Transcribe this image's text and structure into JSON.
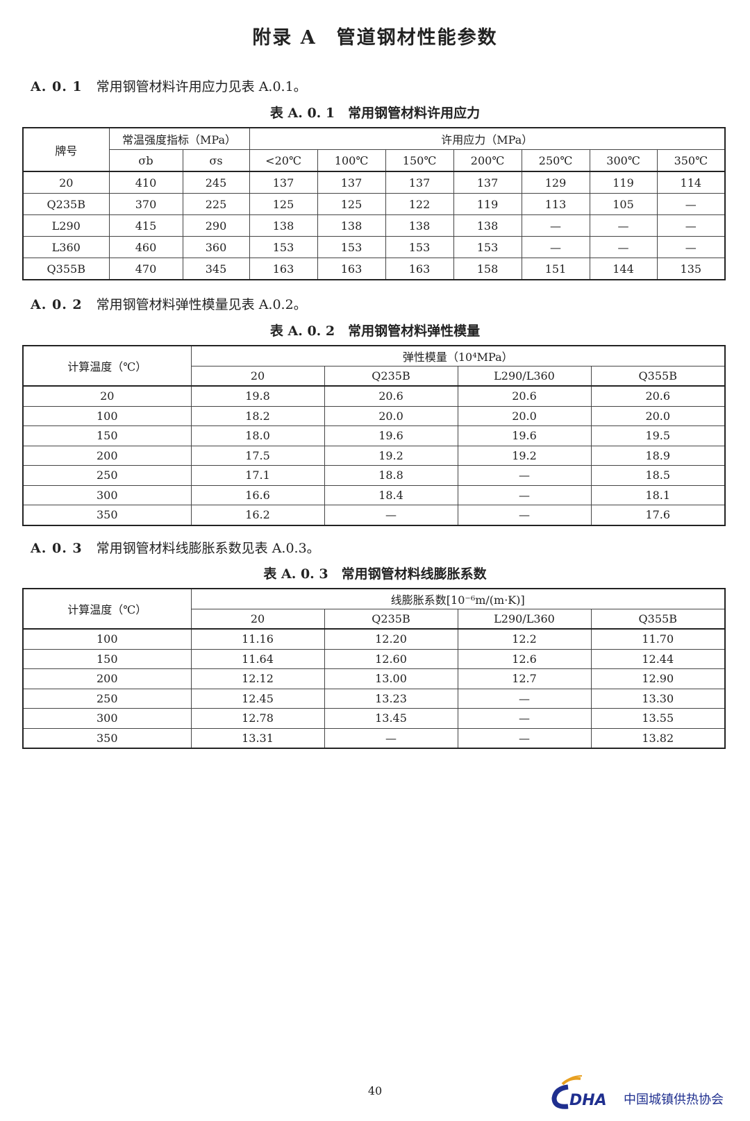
{
  "title": "附录 A　管道钢材性能参数",
  "sections": [
    {
      "num": "A. 0. 1",
      "text": "常用钢管材料许用应力见表 A.0.1。",
      "table_title": "表 A. 0. 1　常用钢管材料许用应力"
    },
    {
      "num": "A. 0. 2",
      "text": "常用钢管材料弹性模量见表 A.0.2。",
      "table_title": "表 A. 0. 2　常用钢管材料弹性模量"
    },
    {
      "num": "A. 0. 3",
      "text": "常用钢管材料线膨胀系数见表 A.0.3。",
      "table_title": "表 A. 0. 3　常用钢管材料线膨胀系数"
    }
  ],
  "t1": {
    "h_grade": "牌号",
    "h_strength": "常温强度指标（MPa）",
    "h_allow": "许用应力（MPa）",
    "sub": [
      "σb",
      "σs",
      "<20℃",
      "100℃",
      "150℃",
      "200℃",
      "250℃",
      "300℃",
      "350℃"
    ],
    "rows": [
      [
        "20",
        "410",
        "245",
        "137",
        "137",
        "137",
        "137",
        "129",
        "119",
        "114"
      ],
      [
        "Q235B",
        "370",
        "225",
        "125",
        "125",
        "122",
        "119",
        "113",
        "105",
        "—"
      ],
      [
        "L290",
        "415",
        "290",
        "138",
        "138",
        "138",
        "138",
        "—",
        "—",
        "—"
      ],
      [
        "L360",
        "460",
        "360",
        "153",
        "153",
        "153",
        "153",
        "—",
        "—",
        "—"
      ],
      [
        "Q355B",
        "470",
        "345",
        "163",
        "163",
        "163",
        "158",
        "151",
        "144",
        "135"
      ]
    ]
  },
  "t2": {
    "h_temp": "计算温度（℃）",
    "h_group": "弹性模量（10⁴MPa）",
    "sub": [
      "20",
      "Q235B",
      "L290/L360",
      "Q355B"
    ],
    "rows": [
      [
        "20",
        "19.8",
        "20.6",
        "20.6",
        "20.6"
      ],
      [
        "100",
        "18.2",
        "20.0",
        "20.0",
        "20.0"
      ],
      [
        "150",
        "18.0",
        "19.6",
        "19.6",
        "19.5"
      ],
      [
        "200",
        "17.5",
        "19.2",
        "19.2",
        "18.9"
      ],
      [
        "250",
        "17.1",
        "18.8",
        "—",
        "18.5"
      ],
      [
        "300",
        "16.6",
        "18.4",
        "—",
        "18.1"
      ],
      [
        "350",
        "16.2",
        "—",
        "—",
        "17.6"
      ]
    ]
  },
  "t3": {
    "h_temp": "计算温度（℃）",
    "h_group": "线膨胀系数[10⁻⁶m/(m·K)]",
    "sub": [
      "20",
      "Q235B",
      "L290/L360",
      "Q355B"
    ],
    "rows": [
      [
        "100",
        "11.16",
        "12.20",
        "12.2",
        "11.70"
      ],
      [
        "150",
        "11.64",
        "12.60",
        "12.6",
        "12.44"
      ],
      [
        "200",
        "12.12",
        "13.00",
        "12.7",
        "12.90"
      ],
      [
        "250",
        "12.45",
        "13.23",
        "—",
        "13.30"
      ],
      [
        "300",
        "12.78",
        "13.45",
        "—",
        "13.55"
      ],
      [
        "350",
        "13.31",
        "—",
        "—",
        "13.82"
      ]
    ]
  },
  "page_number": "40",
  "logo": {
    "mark": "DHA",
    "name": "中国城镇供热协会",
    "colors": {
      "blue": "#1f2f8f",
      "orange": "#e8a020"
    }
  }
}
